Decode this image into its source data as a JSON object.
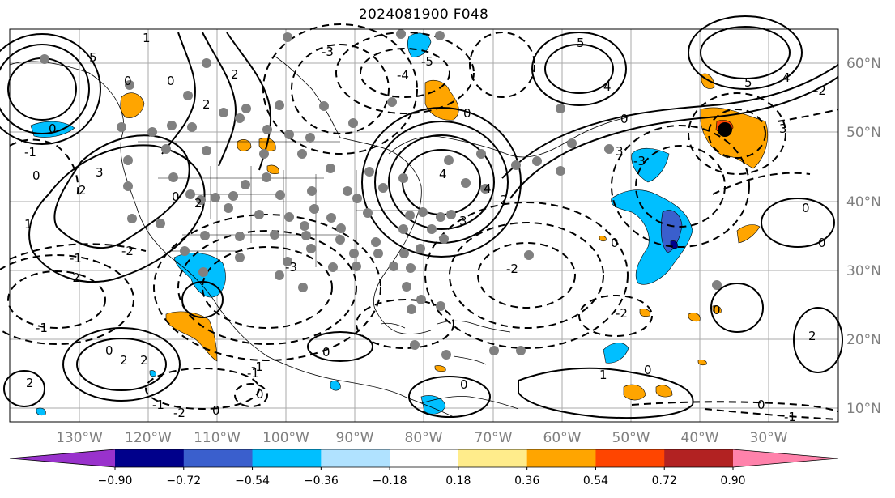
{
  "title": "2024081900 F048",
  "latitude_labels": [
    "60°N",
    "50°N",
    "40°N",
    "30°N",
    "20°N",
    "10°N"
  ],
  "longitude_labels": [
    "130°W",
    "120°W",
    "110°W",
    "100°W",
    "90°W",
    "80°W",
    "70°W",
    "60°W",
    "50°W",
    "40°W",
    "30°W"
  ],
  "colorbar": {
    "colors": [
      "#9932CC",
      "#00008B",
      "#3A5FCD",
      "#00BFFF",
      "#B0E2FF",
      "#FFFFFF",
      "#FFEC8B",
      "#FFA500",
      "#FF4500",
      "#B22222",
      "#FF82AB"
    ],
    "ticks": [
      "−0.90",
      "−0.72",
      "−0.54",
      "−0.36",
      "−0.18",
      "0.18",
      "0.36",
      "0.54",
      "0.72",
      "0.90"
    ]
  },
  "contour_labels": [
    "0",
    "1",
    "2",
    "3",
    "4",
    "5",
    "-1",
    "-2",
    "-3",
    "-4",
    "-5"
  ],
  "colors": {
    "grid": "#aaaaaa",
    "axis_text": "#7f7f7f",
    "station_marker": "#808080",
    "center_marker": "#000000",
    "positive_fill": "#FFA500",
    "negative_fill": "#00BFFF"
  }
}
